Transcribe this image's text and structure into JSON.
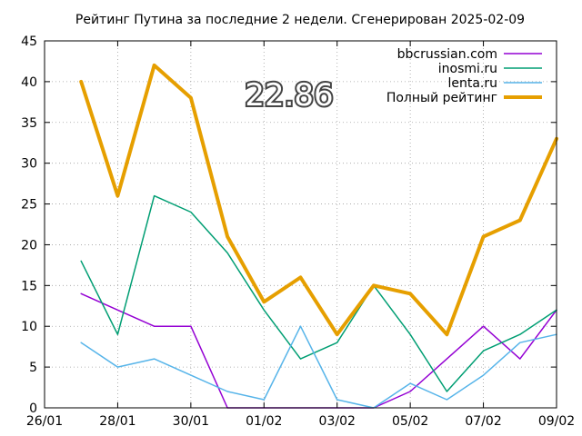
{
  "chart_data": {
    "type": "line",
    "title": "Рейтинг Путина за последние 2 недели. Сгенерирован 2025-02-09",
    "highlight_value": "22.86",
    "xlabel": "",
    "ylabel": "",
    "xlim": [
      "2025-01-26",
      "2025-02-09"
    ],
    "ylim": [
      0,
      45
    ],
    "x_ticks": [
      "26/01",
      "28/01",
      "30/01",
      "01/02",
      "03/02",
      "05/02",
      "07/02",
      "09/02"
    ],
    "y_ticks": [
      0,
      5,
      10,
      15,
      20,
      25,
      30,
      35,
      40,
      45
    ],
    "grid": true,
    "legend_position": "top-right",
    "x": [
      "2025-01-27",
      "2025-01-28",
      "2025-01-29",
      "2025-01-30",
      "2025-01-31",
      "2025-02-01",
      "2025-02-02",
      "2025-02-03",
      "2025-02-04",
      "2025-02-05",
      "2025-02-06",
      "2025-02-07",
      "2025-02-08",
      "2025-02-09"
    ],
    "series": [
      {
        "name": "bbcrussian.com",
        "color": "#9400d3",
        "width": 1.5,
        "values": [
          14,
          12,
          10,
          10,
          0,
          0,
          0,
          0,
          0,
          2,
          6,
          10,
          6,
          12
        ]
      },
      {
        "name": "inosmi.ru",
        "color": "#009e73",
        "width": 1.5,
        "values": [
          18,
          9,
          26,
          24,
          19,
          12,
          6,
          8,
          15,
          9,
          2,
          7,
          9,
          12
        ]
      },
      {
        "name": "lenta.ru",
        "color": "#56b4e9",
        "width": 1.5,
        "values": [
          8,
          5,
          6,
          4,
          2,
          1,
          10,
          1,
          0,
          3,
          1,
          4,
          8,
          9
        ]
      },
      {
        "name": "Полный рейтинг",
        "color": "#e69f00",
        "width": 4,
        "values": [
          40,
          26,
          42,
          38,
          21,
          13,
          16,
          9,
          15,
          14,
          9,
          21,
          23,
          33
        ]
      }
    ]
  }
}
